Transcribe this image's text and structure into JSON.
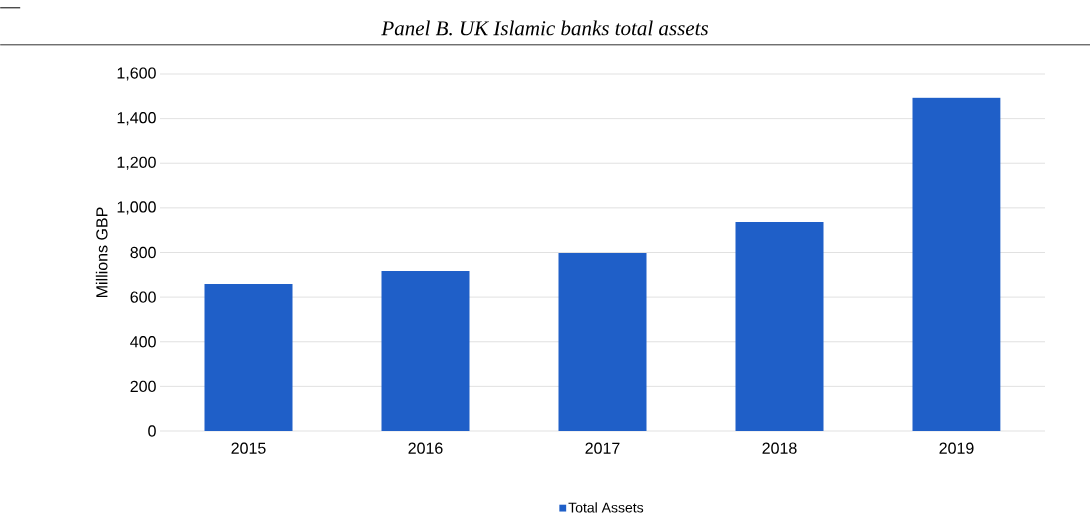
{
  "chart_data": {
    "type": "bar",
    "title": "Panel B. UK Islamic banks total assets",
    "ylabel": "Millions GBP",
    "categories": [
      "2015",
      "2016",
      "2017",
      "2018",
      "2019"
    ],
    "series": [
      {
        "name": "Total Assets",
        "color": "#1f5fc8",
        "values": [
          659,
          717,
          798,
          937,
          1493
        ]
      }
    ],
    "ylim": [
      0,
      1600
    ],
    "yticks": [
      {
        "value": 0,
        "label": "0"
      },
      {
        "value": 200,
        "label": "200"
      },
      {
        "value": 400,
        "label": "400"
      },
      {
        "value": 600,
        "label": "600"
      },
      {
        "value": 800,
        "label": "800"
      },
      {
        "value": 1000,
        "label": "1,000"
      },
      {
        "value": 1200,
        "label": "1,200"
      },
      {
        "value": 1400,
        "label": "1,400"
      },
      {
        "value": 1600,
        "label": "1,600"
      }
    ],
    "grid": "y",
    "legend": "bottom"
  }
}
